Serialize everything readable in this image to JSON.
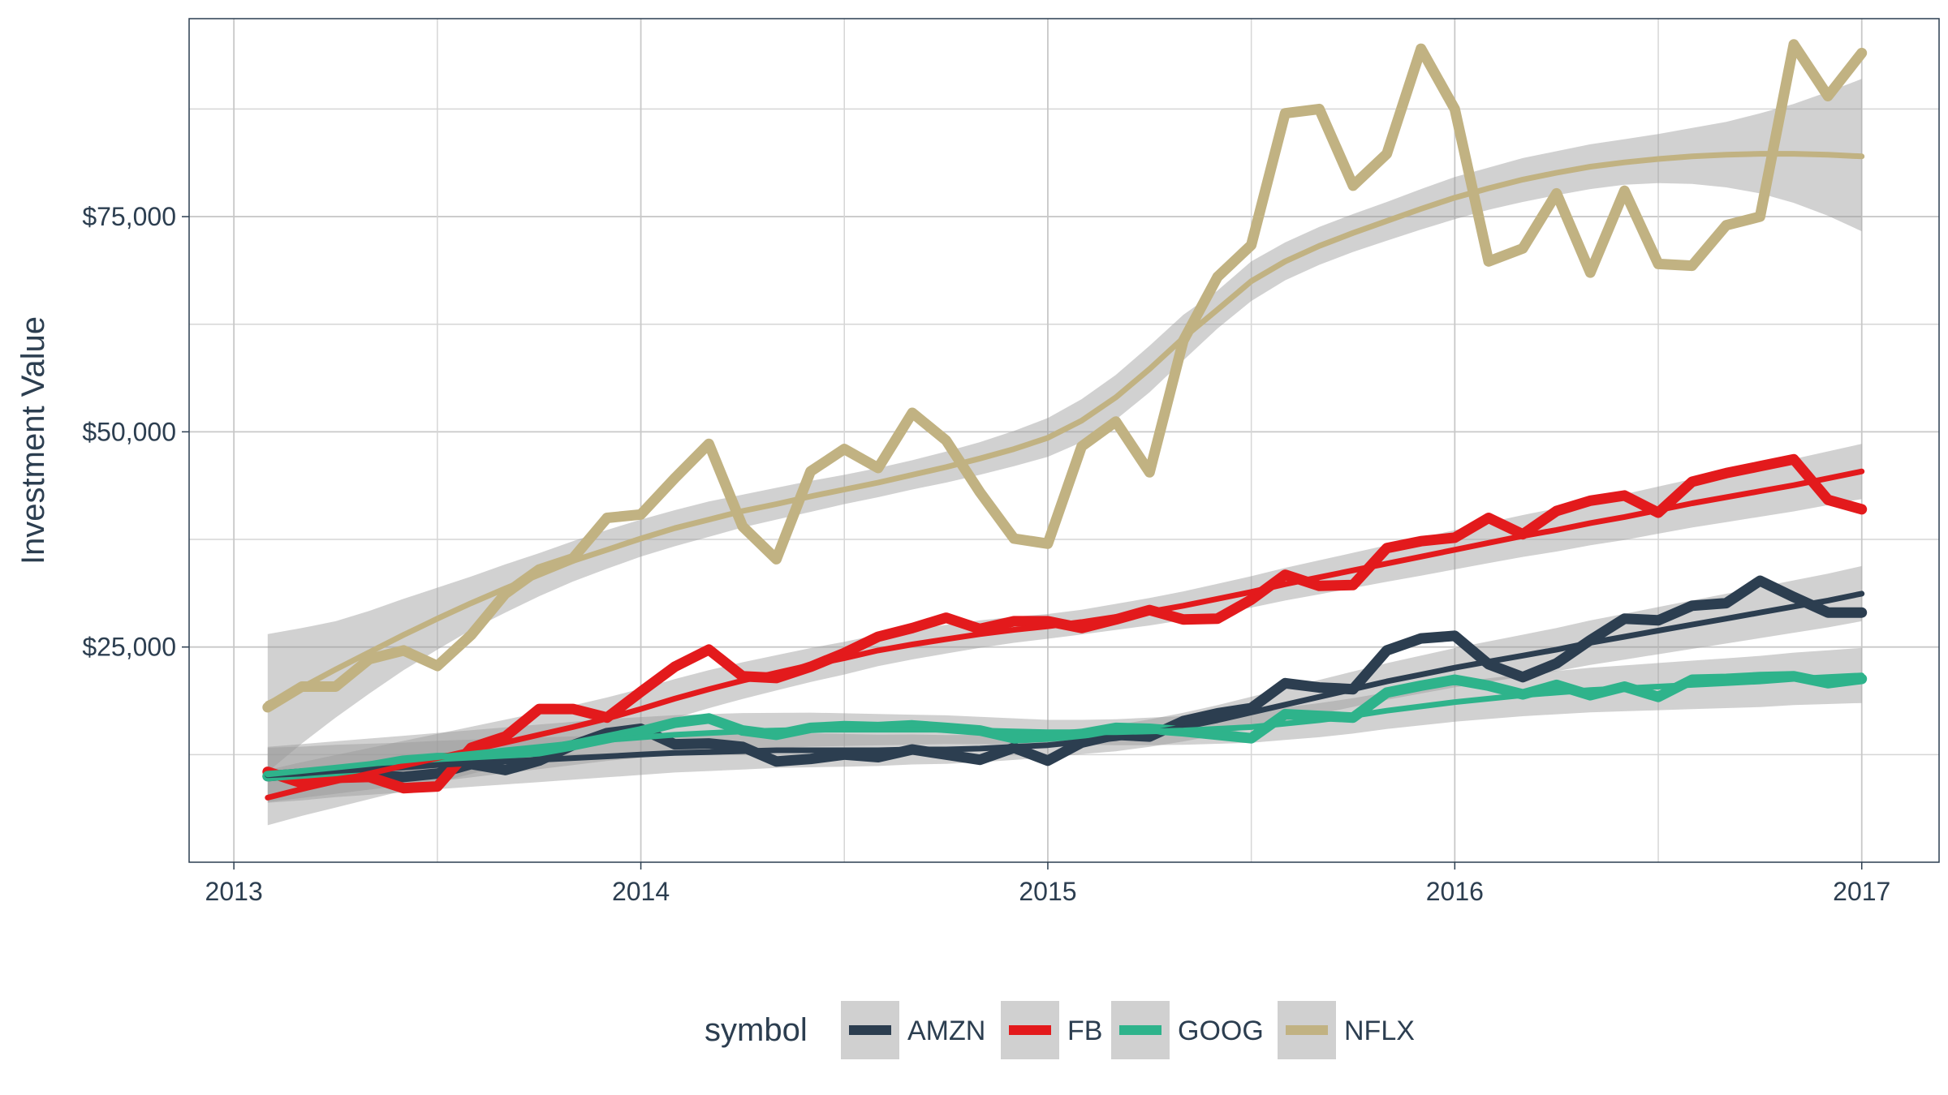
{
  "chart_data": {
    "type": "line",
    "title": "",
    "xlabel": "",
    "ylabel": "Investment Value",
    "x_ticks": [
      "2013",
      "2014",
      "2015",
      "2016",
      "2017"
    ],
    "y_ticks": [
      "$25,000",
      "$50,000",
      "$75,000"
    ],
    "x_range": [
      2012.89,
      2017.19
    ],
    "y_range": [
      0,
      98000
    ],
    "grid": true,
    "legend": {
      "title": "symbol",
      "position": "bottom"
    },
    "x": [
      2013.083,
      2013.167,
      2013.25,
      2013.333,
      2013.417,
      2013.5,
      2013.583,
      2013.667,
      2013.75,
      2013.833,
      2013.917,
      2014.0,
      2014.083,
      2014.167,
      2014.25,
      2014.333,
      2014.417,
      2014.5,
      2014.583,
      2014.667,
      2014.75,
      2014.833,
      2014.917,
      2015.0,
      2015.083,
      2015.167,
      2015.25,
      2015.333,
      2015.417,
      2015.5,
      2015.583,
      2015.667,
      2015.75,
      2015.833,
      2015.917,
      2016.0,
      2016.083,
      2016.167,
      2016.25,
      2016.333,
      2016.417,
      2016.5,
      2016.583,
      2016.667,
      2016.75,
      2016.833,
      2016.917,
      2017.0
    ],
    "series": [
      {
        "name": "AMZN",
        "color": "#2c3e50",
        "values": [
          10000,
          10300,
          10000,
          10100,
          9900,
          10300,
          11400,
          10700,
          11800,
          13600,
          15000,
          15500,
          13700,
          13800,
          13400,
          11700,
          12000,
          12500,
          12200,
          13100,
          12500,
          11900,
          13300,
          11800,
          13900,
          14800,
          14600,
          16400,
          17300,
          17900,
          20800,
          20300,
          20100,
          24600,
          26000,
          26300,
          23000,
          21500,
          23100,
          25800,
          28300,
          28100,
          29800,
          30100,
          32700,
          30800,
          29000,
          29000
        ],
        "trend": [
          10100,
          10300,
          10600,
          10800,
          11000,
          11300,
          11500,
          11700,
          11900,
          12100,
          12300,
          12500,
          12700,
          12800,
          12900,
          13000,
          13000,
          13000,
          13000,
          13100,
          13100,
          13200,
          13400,
          13600,
          14000,
          14400,
          15000,
          15700,
          16500,
          17400,
          18300,
          19200,
          20100,
          21000,
          21800,
          22600,
          23300,
          24000,
          24700,
          25500,
          26200,
          26900,
          27600,
          28300,
          29000,
          29700,
          30400,
          31200
        ]
      },
      {
        "name": "FB",
        "color": "#e31a1c",
        "values": [
          10500,
          9200,
          9800,
          9900,
          8600,
          8800,
          13300,
          14600,
          17800,
          17800,
          16800,
          19800,
          22700,
          24700,
          21600,
          21400,
          22700,
          24300,
          26200,
          27200,
          28400,
          27100,
          28000,
          28000,
          27200,
          28200,
          29300,
          28200,
          28300,
          30500,
          33400,
          32100,
          32200,
          36500,
          37300,
          37700,
          40000,
          38100,
          40800,
          42000,
          42600,
          40600,
          44200,
          45200,
          46000,
          46800,
          42100,
          41000
        ],
        "trend": [
          7500,
          8500,
          9400,
          10300,
          11200,
          12100,
          13000,
          13900,
          14800,
          15700,
          16700,
          17800,
          19000,
          20100,
          21100,
          22000,
          22900,
          23700,
          24600,
          25300,
          25900,
          26500,
          27000,
          27400,
          27900,
          28500,
          29100,
          29800,
          30600,
          31400,
          32300,
          33100,
          33900,
          34700,
          35500,
          36300,
          37100,
          37900,
          38600,
          39400,
          40100,
          40900,
          41700,
          42400,
          43100,
          43800,
          44600,
          45400
        ]
      },
      {
        "name": "GOOG",
        "color": "#2eb38b",
        "values": [
          10000,
          10300,
          10600,
          11100,
          11800,
          12100,
          12100,
          12600,
          12900,
          13600,
          14400,
          15200,
          16200,
          16700,
          15300,
          14800,
          15600,
          15800,
          15700,
          15900,
          15600,
          15300,
          14400,
          14600,
          14900,
          15600,
          15500,
          15200,
          14800,
          14400,
          17200,
          17000,
          16800,
          19700,
          20500,
          21200,
          20500,
          19500,
          20600,
          19400,
          20400,
          19200,
          21200,
          21300,
          21500,
          21600,
          20800,
          21300
        ],
        "trend": [
          10200,
          10600,
          11000,
          11400,
          11800,
          12200,
          12600,
          13000,
          13400,
          13800,
          14200,
          14500,
          14800,
          15000,
          15200,
          15300,
          15400,
          15400,
          15400,
          15400,
          15400,
          15300,
          15200,
          15100,
          15100,
          15100,
          15200,
          15300,
          15500,
          15700,
          16100,
          16500,
          17000,
          17600,
          18100,
          18600,
          19000,
          19400,
          19700,
          20000,
          20200,
          20400,
          20600,
          20800,
          21000,
          21300,
          21500,
          21700
        ]
      },
      {
        "name": "NFLX",
        "color": "#c1b282",
        "values": [
          18000,
          20400,
          20400,
          23600,
          24600,
          22800,
          26400,
          31200,
          34000,
          35300,
          40000,
          40400,
          44600,
          48600,
          39000,
          35200,
          45400,
          48000,
          45800,
          52200,
          49000,
          43000,
          37600,
          37000,
          48300,
          51200,
          45300,
          60600,
          68000,
          71700,
          87000,
          87500,
          78600,
          82300,
          94500,
          87500,
          69800,
          71300,
          77700,
          68500,
          78000,
          69500,
          69300,
          74000,
          75000,
          95000,
          89000,
          94000
        ],
        "trend": [
          18400,
          20300,
          22400,
          24400,
          26400,
          28300,
          30100,
          31800,
          33400,
          35000,
          36300,
          37600,
          38800,
          39800,
          40800,
          41600,
          42500,
          43300,
          44100,
          45000,
          45900,
          46900,
          48000,
          49300,
          51300,
          54000,
          57300,
          60900,
          64200,
          67500,
          69800,
          71600,
          73100,
          74500,
          75900,
          77200,
          78300,
          79300,
          80100,
          80800,
          81300,
          81700,
          82000,
          82200,
          82300,
          82300,
          82200,
          82000
        ],
        "band_lower": [
          10500,
          13800,
          16800,
          19600,
          22300,
          24700,
          27000,
          29000,
          30900,
          32600,
          34100,
          35500,
          36700,
          37800,
          38900,
          39800,
          40700,
          41600,
          42400,
          43300,
          44100,
          45000,
          46000,
          47100,
          48800,
          51400,
          54600,
          58300,
          62000,
          65200,
          67600,
          69400,
          70900,
          72200,
          73500,
          74700,
          75800,
          76700,
          77500,
          78200,
          78700,
          78900,
          78800,
          78400,
          77700,
          76600,
          75100,
          73300
        ],
        "band_upper": [
          26500,
          27200,
          28000,
          29200,
          30600,
          31900,
          33200,
          34600,
          35900,
          37300,
          38600,
          39800,
          40900,
          41900,
          42700,
          43500,
          44300,
          45000,
          45800,
          46700,
          47700,
          48800,
          50100,
          51600,
          53800,
          56600,
          60000,
          63600,
          66400,
          69800,
          72000,
          73800,
          75300,
          76700,
          78200,
          79600,
          80700,
          81800,
          82600,
          83400,
          84000,
          84600,
          85300,
          86000,
          87000,
          88100,
          89500,
          91000
        ]
      }
    ]
  }
}
